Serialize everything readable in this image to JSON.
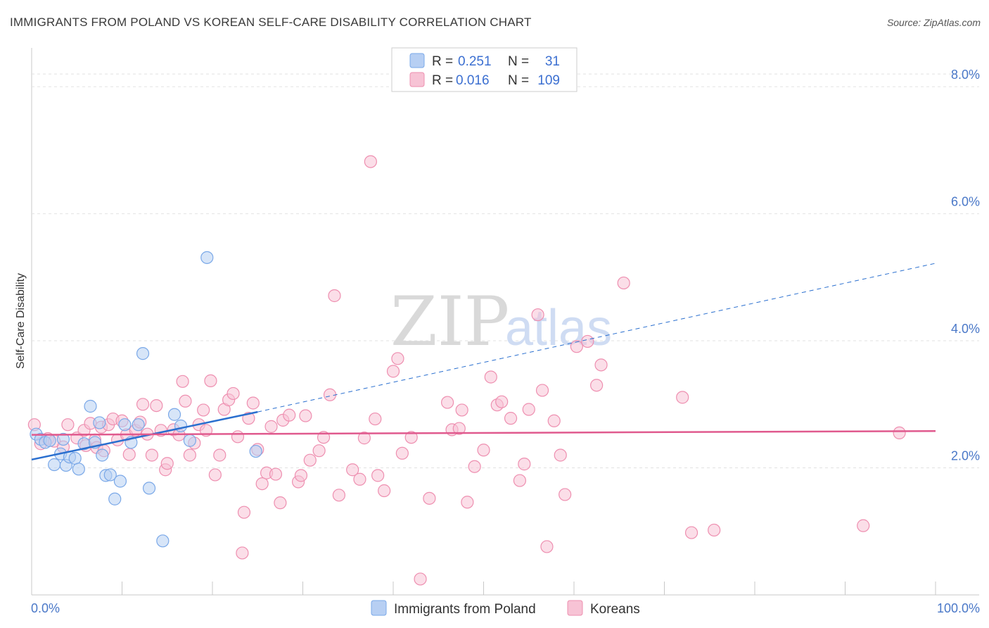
{
  "title": "IMMIGRANTS FROM POLAND VS KOREAN SELF-CARE DISABILITY CORRELATION CHART",
  "source": "Source: ZipAtlas.com",
  "watermark": {
    "zip": "ZIP",
    "atlas": "atlas"
  },
  "chart_data": {
    "type": "scatter",
    "xlabel": "",
    "ylabel": "Self-Care Disability",
    "xlim": [
      0,
      100
    ],
    "ylim": [
      0,
      8.5
    ],
    "x_tick_labels": [
      "0.0%",
      "100.0%"
    ],
    "y_ticks": [
      2,
      4,
      6,
      8
    ],
    "y_tick_labels": [
      "2.0%",
      "4.0%",
      "6.0%",
      "8.0%"
    ],
    "legend": {
      "rows": [
        {
          "r_label": "R =",
          "r_value": "0.251",
          "n_label": "N =",
          "n_value": "31"
        },
        {
          "r_label": "R =",
          "r_value": "0.016",
          "n_label": "N =",
          "n_value": "109"
        }
      ]
    },
    "series": [
      {
        "name": "Immigrants from Poland",
        "color": "#7aa8e8",
        "fill": "#b7cff3",
        "trend": {
          "x0": 0,
          "y0": 2.13,
          "x1": 25,
          "y1": 2.88,
          "dashed_to_x": 100,
          "dashed_to_y": 5.22,
          "color": "#2a6fcf"
        },
        "points": [
          [
            0.5,
            2.53
          ],
          [
            1,
            2.45
          ],
          [
            1.5,
            2.4
          ],
          [
            2,
            2.43
          ],
          [
            2.5,
            2.05
          ],
          [
            3.2,
            2.22
          ],
          [
            3.5,
            2.45
          ],
          [
            3.8,
            2.04
          ],
          [
            4.2,
            2.17
          ],
          [
            4.8,
            2.15
          ],
          [
            5.2,
            1.98
          ],
          [
            5.8,
            2.38
          ],
          [
            6.5,
            2.97
          ],
          [
            7,
            2.4
          ],
          [
            7.5,
            2.71
          ],
          [
            7.8,
            2.2
          ],
          [
            8.2,
            1.88
          ],
          [
            8.7,
            1.89
          ],
          [
            9.2,
            1.51
          ],
          [
            9.8,
            1.79
          ],
          [
            10.3,
            2.68
          ],
          [
            11,
            2.4
          ],
          [
            11.8,
            2.68
          ],
          [
            12.3,
            3.8
          ],
          [
            13,
            1.68
          ],
          [
            14.5,
            0.85
          ],
          [
            15.8,
            2.84
          ],
          [
            16.5,
            2.66
          ],
          [
            17.5,
            2.43
          ],
          [
            19.4,
            5.31
          ],
          [
            24.8,
            2.26
          ]
        ]
      },
      {
        "name": "Koreans",
        "color": "#ee8fb0",
        "fill": "#f7c3d5",
        "trend": {
          "x0": 0,
          "y0": 2.52,
          "x1": 100,
          "y1": 2.58,
          "color": "#e05a8e"
        },
        "points": [
          [
            0.3,
            2.68
          ],
          [
            1,
            2.38
          ],
          [
            1.8,
            2.46
          ],
          [
            2.5,
            2.42
          ],
          [
            3.5,
            2.33
          ],
          [
            4,
            2.68
          ],
          [
            5,
            2.47
          ],
          [
            5.8,
            2.59
          ],
          [
            6,
            2.35
          ],
          [
            6.5,
            2.7
          ],
          [
            7,
            2.44
          ],
          [
            7.2,
            2.32
          ],
          [
            7.7,
            2.64
          ],
          [
            8,
            2.27
          ],
          [
            8.5,
            2.68
          ],
          [
            9,
            2.77
          ],
          [
            9.5,
            2.44
          ],
          [
            10,
            2.74
          ],
          [
            10.5,
            2.52
          ],
          [
            10.8,
            2.21
          ],
          [
            11.5,
            2.59
          ],
          [
            12,
            2.72
          ],
          [
            12.3,
            3.0
          ],
          [
            12.8,
            2.53
          ],
          [
            13.3,
            2.2
          ],
          [
            13.8,
            2.98
          ],
          [
            14.3,
            2.59
          ],
          [
            14.8,
            1.97
          ],
          [
            15,
            2.07
          ],
          [
            15.7,
            2.6
          ],
          [
            16.3,
            2.52
          ],
          [
            16.7,
            3.36
          ],
          [
            17,
            3.05
          ],
          [
            17.5,
            2.2
          ],
          [
            18,
            2.39
          ],
          [
            18.5,
            2.68
          ],
          [
            19,
            2.91
          ],
          [
            19.3,
            2.59
          ],
          [
            19.8,
            3.37
          ],
          [
            20.3,
            1.89
          ],
          [
            20.8,
            2.2
          ],
          [
            21.3,
            2.92
          ],
          [
            21.8,
            3.07
          ],
          [
            22.3,
            3.17
          ],
          [
            22.8,
            2.49
          ],
          [
            23.3,
            0.66
          ],
          [
            23.5,
            1.3
          ],
          [
            24,
            2.78
          ],
          [
            24.5,
            3.02
          ],
          [
            25,
            2.29
          ],
          [
            25.5,
            1.75
          ],
          [
            26,
            1.92
          ],
          [
            26.5,
            2.65
          ],
          [
            27,
            1.9
          ],
          [
            27.5,
            1.45
          ],
          [
            27.8,
            2.75
          ],
          [
            28.5,
            2.83
          ],
          [
            29.5,
            1.78
          ],
          [
            29.8,
            1.88
          ],
          [
            30.3,
            2.82
          ],
          [
            30.8,
            2.12
          ],
          [
            31.8,
            2.27
          ],
          [
            32.3,
            2.48
          ],
          [
            33,
            3.15
          ],
          [
            33.5,
            4.71
          ],
          [
            34,
            1.57
          ],
          [
            35.5,
            1.97
          ],
          [
            36.3,
            1.82
          ],
          [
            36.8,
            2.47
          ],
          [
            37.5,
            6.82
          ],
          [
            38,
            2.77
          ],
          [
            38.3,
            1.88
          ],
          [
            39,
            1.64
          ],
          [
            40,
            3.52
          ],
          [
            40.5,
            3.72
          ],
          [
            41,
            2.23
          ],
          [
            42,
            2.48
          ],
          [
            43,
            0.25
          ],
          [
            44,
            1.52
          ],
          [
            46,
            3.03
          ],
          [
            46.5,
            2.6
          ],
          [
            47.3,
            2.62
          ],
          [
            47.6,
            2.91
          ],
          [
            48.2,
            1.46
          ],
          [
            49,
            2.02
          ],
          [
            50,
            2.28
          ],
          [
            50.8,
            3.43
          ],
          [
            51.5,
            2.99
          ],
          [
            52,
            3.04
          ],
          [
            53,
            2.78
          ],
          [
            54,
            1.8
          ],
          [
            54.5,
            2.06
          ],
          [
            55,
            2.92
          ],
          [
            56,
            4.41
          ],
          [
            56.5,
            3.22
          ],
          [
            57,
            0.76
          ],
          [
            57.8,
            2.74
          ],
          [
            58.5,
            2.2
          ],
          [
            59,
            1.58
          ],
          [
            60.3,
            3.91
          ],
          [
            61.5,
            3.99
          ],
          [
            62.5,
            3.3
          ],
          [
            63,
            3.62
          ],
          [
            65.5,
            4.91
          ],
          [
            72,
            3.11
          ],
          [
            73,
            0.98
          ],
          [
            75.5,
            1.02
          ],
          [
            92,
            1.09
          ],
          [
            96,
            2.55
          ]
        ]
      }
    ]
  },
  "bottom_legend": {
    "series1": "Immigrants from Poland",
    "series2": "Koreans"
  }
}
